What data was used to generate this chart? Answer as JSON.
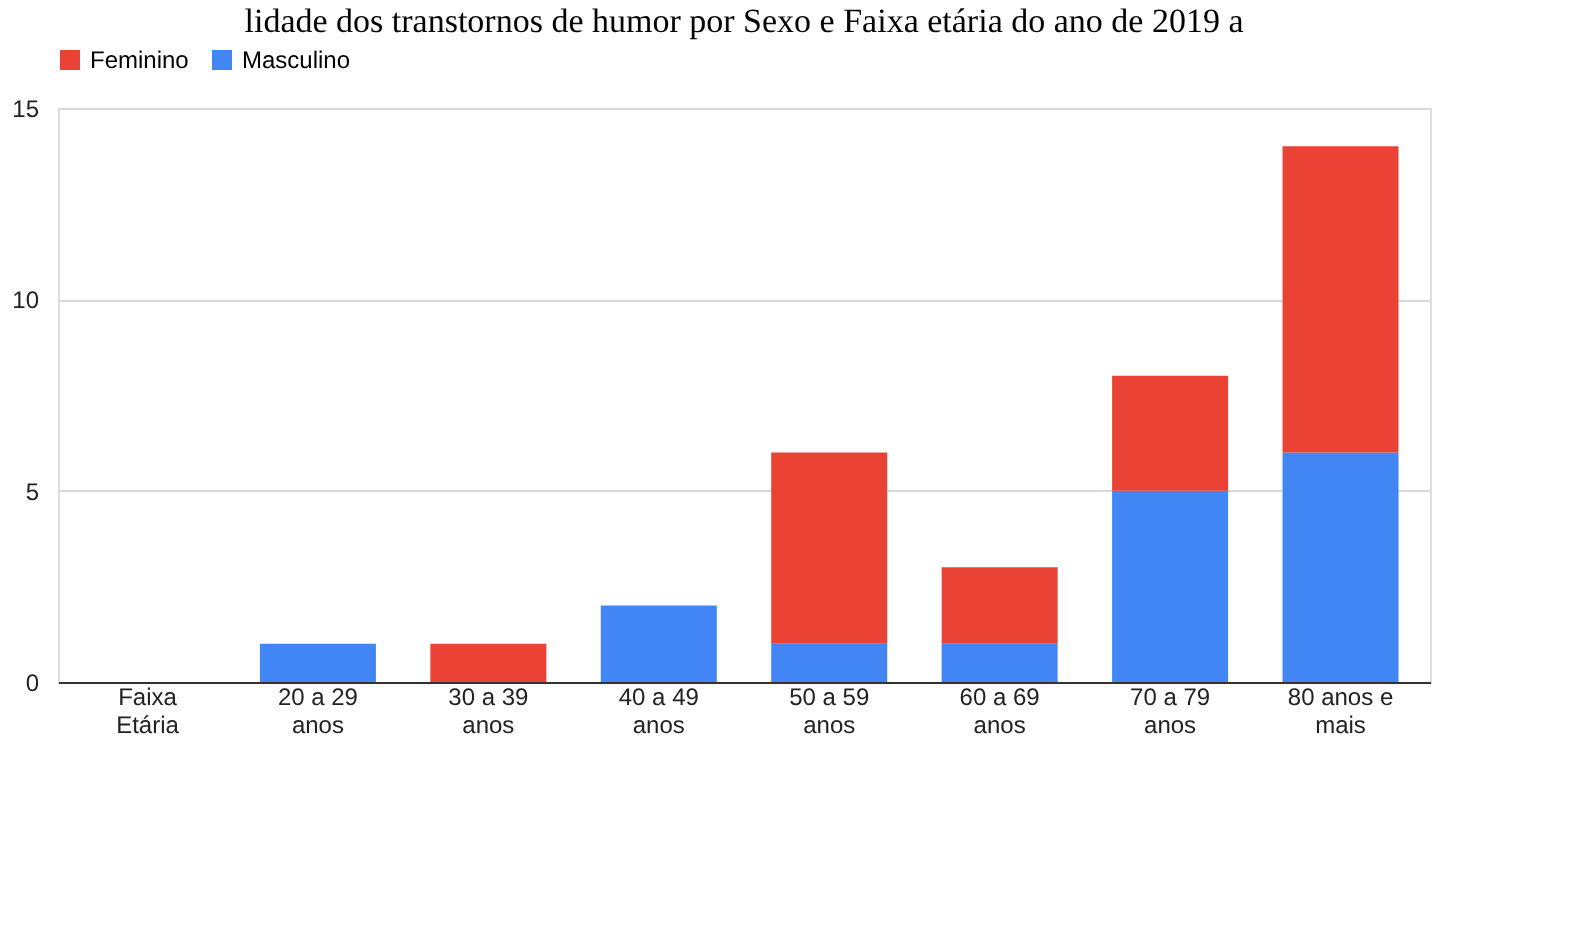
{
  "chart_data": {
    "type": "bar",
    "title": "lidade dos transtornos de humor por Sexo e Faixa etária do ano de 2019 a",
    "categories": [
      "Faixa Etária",
      "20 a 29 anos",
      "30 a 39 anos",
      "40 a 49 anos",
      "50 a 59 anos",
      "60 a 69 anos",
      "70 a 79 anos",
      "80 anos e mais"
    ],
    "series": [
      {
        "name": "Masculino",
        "color": "#4285f4",
        "values": [
          0,
          1,
          0,
          2,
          1,
          1,
          5,
          6
        ]
      },
      {
        "name": "Feminino",
        "color": "#ea4335",
        "values": [
          0,
          0,
          1,
          0,
          5,
          2,
          3,
          8
        ]
      }
    ],
    "stacked": true,
    "ylim": [
      0,
      15
    ],
    "yticks": [
      0,
      5,
      10,
      15
    ],
    "grid": "y",
    "legend": "top"
  }
}
